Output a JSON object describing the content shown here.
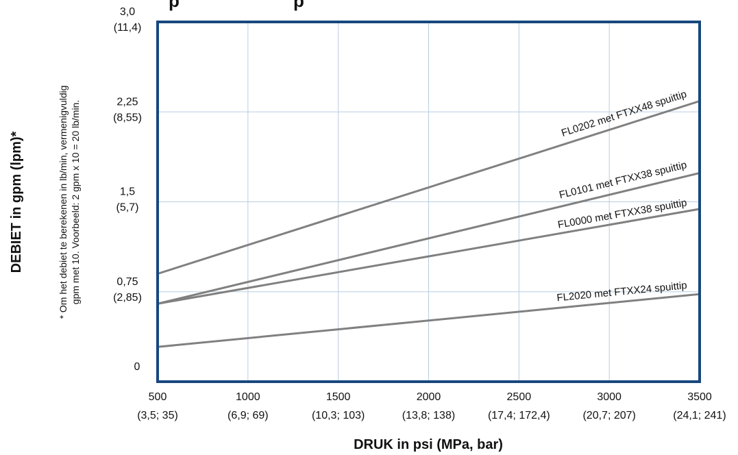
{
  "chart_data": {
    "type": "line",
    "title_fragment_left": "p",
    "title_fragment_right": "p",
    "xlabel": "DRUK in psi (MPa, bar)",
    "ylabel": "DEBIET in gpm (lpm)*",
    "footnote_line1": "* Om het debiet te berekenen in lb/min, vermenigvuldig",
    "footnote_line2": "gpm met 10. Voorbeeld: 2 gpm x 10 = 20 lb/min.",
    "xlim": [
      500,
      3500
    ],
    "ylim": [
      0,
      3.0
    ],
    "grid": true,
    "x_ticks": [
      {
        "value": 500,
        "label": "500",
        "sublabel": "(3,5; 35)"
      },
      {
        "value": 1000,
        "label": "1000",
        "sublabel": "(6,9; 69)"
      },
      {
        "value": 1500,
        "label": "1500",
        "sublabel": "(10,3; 103)"
      },
      {
        "value": 2000,
        "label": "2000",
        "sublabel": "(13,8; 138)"
      },
      {
        "value": 2500,
        "label": "2500",
        "sublabel": "(17,4; 172,4)"
      },
      {
        "value": 3000,
        "label": "3000",
        "sublabel": "(20,7; 207)"
      },
      {
        "value": 3500,
        "label": "3500",
        "sublabel": "(24,1; 241)"
      }
    ],
    "y_ticks": [
      {
        "value": 0,
        "label": "0",
        "sublabel": ""
      },
      {
        "value": 0.75,
        "label": "0,75",
        "sublabel": "(2,85)"
      },
      {
        "value": 1.5,
        "label": "1,5",
        "sublabel": "(5,7)"
      },
      {
        "value": 2.25,
        "label": "2,25",
        "sublabel": "(8,55)"
      },
      {
        "value": 3.0,
        "label": "3,0",
        "sublabel": "(11,4)"
      }
    ],
    "series": [
      {
        "name": "FL0202 met FTXX48 spuittip",
        "x": [
          500,
          3500
        ],
        "y": [
          0.9,
          2.34
        ],
        "color": "#808080"
      },
      {
        "name": "FL0101 met FTXX38 spuittip",
        "x": [
          500,
          3500
        ],
        "y": [
          0.65,
          1.74
        ],
        "color": "#808080"
      },
      {
        "name": "FL0000 met FTXX38 spuittip",
        "x": [
          500,
          3500
        ],
        "y": [
          0.65,
          1.44
        ],
        "color": "#808080"
      },
      {
        "name": "FL2020 met FTXX24 spuittip",
        "x": [
          500,
          3500
        ],
        "y": [
          0.29,
          0.73
        ],
        "color": "#808080"
      }
    ],
    "frame_color": "#17487f",
    "grid_color": "#b8cde0"
  }
}
